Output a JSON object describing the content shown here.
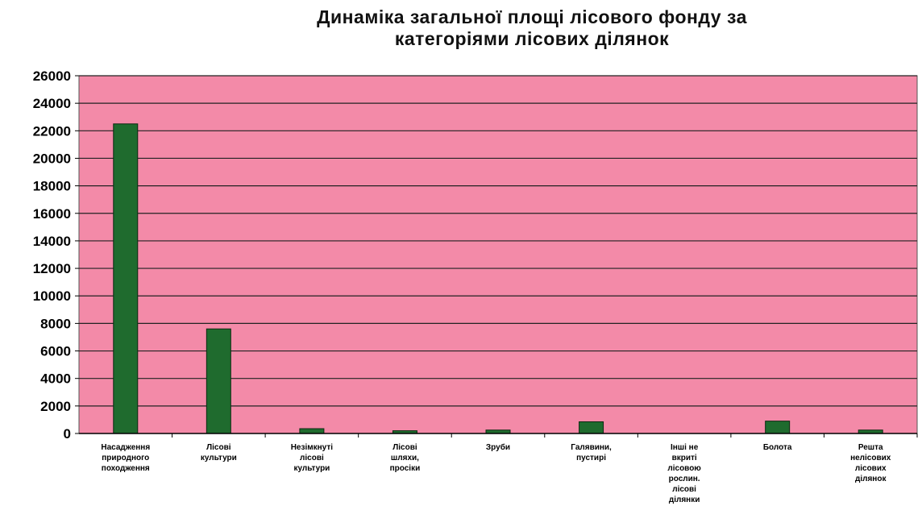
{
  "chart_data": {
    "type": "bar",
    "title_lines": [
      "Динаміка загальної площі лісового фонду за",
      "категоріями лісових ділянок"
    ],
    "xlabel": "",
    "ylabel": "",
    "ylim": [
      0,
      26000
    ],
    "yticks": [
      0,
      2000,
      4000,
      6000,
      8000,
      10000,
      12000,
      14000,
      16000,
      18000,
      20000,
      22000,
      24000,
      26000
    ],
    "grid": true,
    "legend": "none",
    "categories": [
      [
        "Насадження",
        "природного",
        "походження"
      ],
      [
        "Лісові",
        "культури"
      ],
      [
        "Незімкнуті",
        "лісові",
        "культури"
      ],
      [
        "Лісові",
        "шляхи,",
        "просіки"
      ],
      [
        "Зруби"
      ],
      [
        "Галявини,",
        "пустирі"
      ],
      [
        "Інші не",
        "вкриті",
        "лісовою",
        "рослин.",
        "лісові",
        "ділянки"
      ],
      [
        "Болота"
      ],
      [
        "Решта",
        "нелісових",
        "лісових",
        "ділянок"
      ]
    ],
    "values": [
      22500,
      7600,
      350,
      200,
      250,
      850,
      0,
      900,
      250
    ],
    "colors": {
      "plot_background": "#f38aa8",
      "bar_fill": "#1f6b2e",
      "bar_stroke": "#0c2a12",
      "grid": "#222222"
    }
  }
}
